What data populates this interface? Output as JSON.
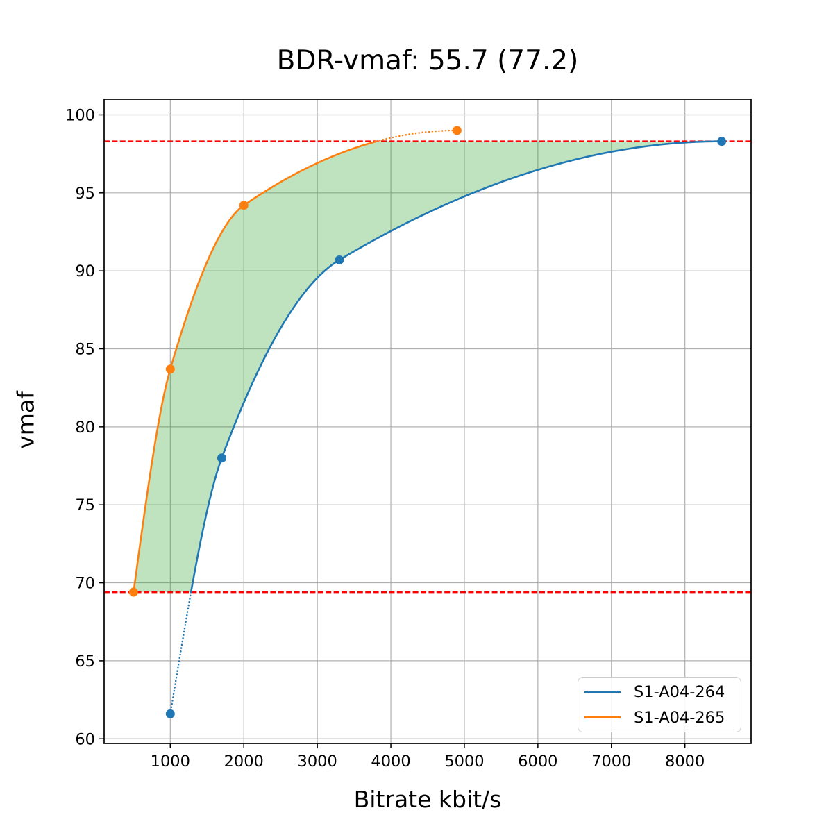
{
  "chart_data": {
    "type": "line",
    "title": "BDR-vmaf: 55.7 (77.2)",
    "xlabel": "Bitrate kbit/s",
    "ylabel": "vmaf",
    "xlim": [
      100,
      8900
    ],
    "ylim": [
      59.7,
      101.0
    ],
    "x_ticks": [
      1000,
      2000,
      3000,
      4000,
      5000,
      6000,
      7000,
      8000
    ],
    "y_ticks": [
      60,
      65,
      70,
      75,
      80,
      85,
      90,
      95,
      100
    ],
    "grid": true,
    "grid_color": "#b0b0b0",
    "series": [
      {
        "name": "S1-A04-264",
        "color": "#1f77b4",
        "x": [
          1000,
          1700,
          3300,
          8500
        ],
        "y": [
          61.6,
          78.0,
          90.7,
          98.3
        ]
      },
      {
        "name": "S1-A04-265",
        "color": "#ff7f0e",
        "x": [
          500,
          1000,
          2000,
          4900
        ],
        "y": [
          69.4,
          83.7,
          94.2,
          99.0
        ]
      }
    ],
    "reference_lines": {
      "style": "dashed",
      "color": "#ff0000",
      "lower": 69.4,
      "upper": 98.3
    },
    "shaded_region": {
      "fill_color": "#2ca02c",
      "opacity": 0.3
    },
    "legend": {
      "position": "lower right"
    }
  }
}
